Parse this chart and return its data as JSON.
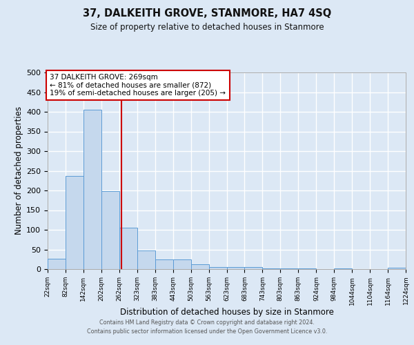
{
  "title": "37, DALKEITH GROVE, STANMORE, HA7 4SQ",
  "subtitle": "Size of property relative to detached houses in Stanmore",
  "xlabel": "Distribution of detached houses by size in Stanmore",
  "ylabel": "Number of detached properties",
  "bin_edges": [
    22,
    82,
    142,
    202,
    262,
    323,
    383,
    443,
    503,
    563,
    623,
    683,
    743,
    803,
    863,
    924,
    984,
    1044,
    1104,
    1164,
    1224
  ],
  "bar_heights": [
    27,
    237,
    405,
    198,
    105,
    48,
    25,
    25,
    12,
    6,
    5,
    5,
    2,
    1,
    2,
    0,
    2,
    0,
    0,
    3
  ],
  "bar_color": "#c5d8ed",
  "bar_edgecolor": "#5b9bd5",
  "property_size": 269,
  "vline_color": "#cc0000",
  "ylim_min": 0,
  "ylim_max": 500,
  "yticks": [
    0,
    50,
    100,
    150,
    200,
    250,
    300,
    350,
    400,
    450,
    500
  ],
  "annotation_line1": "37 DALKEITH GROVE: 269sqm",
  "annotation_line2": "← 81% of detached houses are smaller (872)",
  "annotation_line3": "19% of semi-detached houses are larger (205) →",
  "annotation_box_facecolor": "#ffffff",
  "annotation_box_edgecolor": "#cc0000",
  "bg_color": "#dce8f5",
  "grid_color": "#ffffff",
  "footer_line1": "Contains HM Land Registry data © Crown copyright and database right 2024.",
  "footer_line2": "Contains public sector information licensed under the Open Government Licence v3.0."
}
